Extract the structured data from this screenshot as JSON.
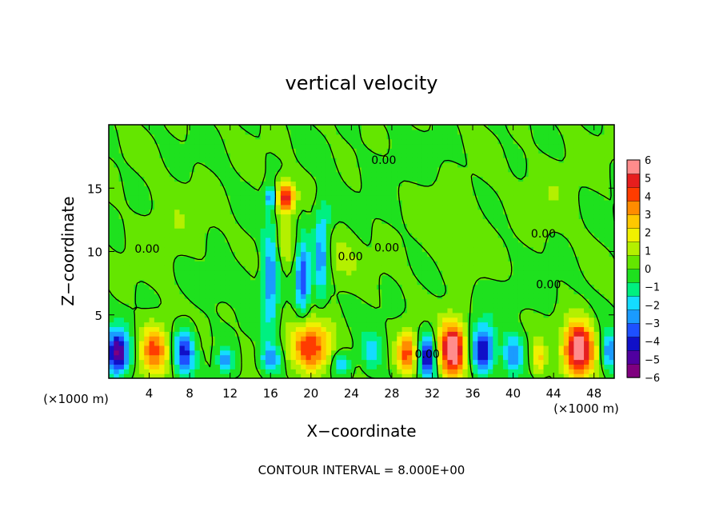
{
  "chart_data": {
    "type": "heatmap",
    "title": "vertical velocity",
    "xlabel": "X−coordinate",
    "ylabel": "Z−coordinate",
    "x_unit_left": "(×1000 m)",
    "x_unit_right": "(×1000 m)",
    "footer": "CONTOUR INTERVAL = 8.000E+00",
    "xlim": [
      0,
      50
    ],
    "ylim": [
      0,
      20
    ],
    "x_ticks": [
      4,
      8,
      12,
      16,
      20,
      24,
      28,
      32,
      36,
      40,
      44,
      48
    ],
    "x_tick_labels": [
      "4",
      "8",
      "12",
      "16",
      "20",
      "24",
      "28",
      "32",
      "36",
      "40",
      "44",
      "48"
    ],
    "y_ticks": [
      5,
      10,
      15
    ],
    "y_tick_labels": [
      "5",
      "10",
      "15"
    ],
    "colorbar": {
      "range": [
        -6,
        6
      ],
      "tick_labels": [
        "6",
        "5",
        "4",
        "3",
        "2",
        "1",
        "0",
        "−1",
        "−2",
        "−3",
        "−4",
        "−5",
        "−6"
      ],
      "colors": [
        "#7f007f",
        "#5000a0",
        "#1010c8",
        "#1e50ff",
        "#1a9bff",
        "#14dcff",
        "#00f080",
        "#1ee11e",
        "#64e600",
        "#b4f000",
        "#f0f000",
        "#ffc800",
        "#ff8c00",
        "#ff3c00",
        "#e61e1e",
        "#ff8c8c"
      ]
    },
    "contour_labels": [
      {
        "text": "0.00",
        "x": 27.2,
        "y": 16.9
      },
      {
        "text": "0.00",
        "x": 3.8,
        "y": 9.9
      },
      {
        "text": "0.00",
        "x": 27.5,
        "y": 10.0
      },
      {
        "text": "0.00",
        "x": 43.0,
        "y": 11.1
      },
      {
        "text": "0.00",
        "x": 43.5,
        "y": 7.1
      },
      {
        "text": "0.00",
        "x": 23.9,
        "y": 9.3
      },
      {
        "text": "0.00",
        "x": 31.5,
        "y": 1.6
      }
    ],
    "features": [
      {
        "x": 0.8,
        "z": 2.0,
        "w": -5.5,
        "rx": 1.2,
        "rz": 1.8
      },
      {
        "x": 4.5,
        "z": 2.3,
        "w": 4.0,
        "rx": 1.4,
        "rz": 2.0
      },
      {
        "x": 7.5,
        "z": 2.2,
        "w": -4.0,
        "rx": 1.0,
        "rz": 1.8
      },
      {
        "x": 11.5,
        "z": 1.5,
        "w": -3.0,
        "rx": 0.7,
        "rz": 1.0
      },
      {
        "x": 16.0,
        "z": 1.5,
        "w": -3.0,
        "rx": 1.0,
        "rz": 1.2
      },
      {
        "x": 20.0,
        "z": 2.5,
        "w": 4.5,
        "rx": 2.0,
        "rz": 2.0
      },
      {
        "x": 23.0,
        "z": 1.2,
        "w": -2.0,
        "rx": 1.0,
        "rz": 1.0
      },
      {
        "x": 26.0,
        "z": 2.0,
        "w": -2.0,
        "rx": 1.0,
        "rz": 1.5
      },
      {
        "x": 29.5,
        "z": 2.0,
        "w": 4.0,
        "rx": 1.0,
        "rz": 1.7
      },
      {
        "x": 31.5,
        "z": 1.8,
        "w": -4.5,
        "rx": 0.8,
        "rz": 1.8
      },
      {
        "x": 34.0,
        "z": 2.3,
        "w": 6.5,
        "rx": 1.3,
        "rz": 2.2
      },
      {
        "x": 37.0,
        "z": 2.3,
        "w": -4.5,
        "rx": 1.1,
        "rz": 1.9
      },
      {
        "x": 40.0,
        "z": 1.8,
        "w": -3.0,
        "rx": 1.0,
        "rz": 1.6
      },
      {
        "x": 42.5,
        "z": 1.6,
        "w": 2.5,
        "rx": 0.8,
        "rz": 1.3
      },
      {
        "x": 46.5,
        "z": 2.3,
        "w": 6.5,
        "rx": 1.5,
        "rz": 2.2
      },
      {
        "x": 49.5,
        "z": 2.0,
        "w": -3.0,
        "rx": 0.8,
        "rz": 1.6
      },
      {
        "x": 17.5,
        "z": 14.3,
        "w": 5.0,
        "rx": 0.9,
        "rz": 1.2
      },
      {
        "x": 16.0,
        "z": 14.3,
        "w": -3.0,
        "rx": 0.5,
        "rz": 0.9
      },
      {
        "x": 16.0,
        "z": 8.0,
        "w": -3.0,
        "rx": 0.8,
        "rz": 4.0
      },
      {
        "x": 17.5,
        "z": 10.5,
        "w": 1.5,
        "rx": 1.0,
        "rz": 2.0
      },
      {
        "x": 19.2,
        "z": 8.0,
        "w": -3.5,
        "rx": 0.7,
        "rz": 3.0
      },
      {
        "x": 21.0,
        "z": 9.5,
        "w": -2.5,
        "rx": 0.7,
        "rz": 3.5
      },
      {
        "x": 21.5,
        "z": 13.0,
        "w": -1.0,
        "rx": 1.0,
        "rz": 1.5
      },
      {
        "x": 23.0,
        "z": 9.5,
        "w": 1.0,
        "rx": 1.5,
        "rz": 2.0
      },
      {
        "x": 6.0,
        "z": 12.0,
        "w": 0.6,
        "rx": 3.0,
        "rz": 3.0
      },
      {
        "x": 34.0,
        "z": 12.0,
        "w": 0.5,
        "rx": 4.0,
        "rz": 4.0
      },
      {
        "x": 44.0,
        "z": 15.0,
        "w": 0.5,
        "rx": 3.0,
        "rz": 3.0
      },
      {
        "x": 12.0,
        "z": 7.5,
        "w": -0.5,
        "rx": 3.0,
        "rz": 1.5
      },
      {
        "x": 40.0,
        "z": 6.5,
        "w": -0.5,
        "rx": 4.0,
        "rz": 1.5
      },
      {
        "x": 29.0,
        "z": 17.0,
        "w": -0.4,
        "rx": 4.0,
        "rz": 2.0
      }
    ]
  }
}
